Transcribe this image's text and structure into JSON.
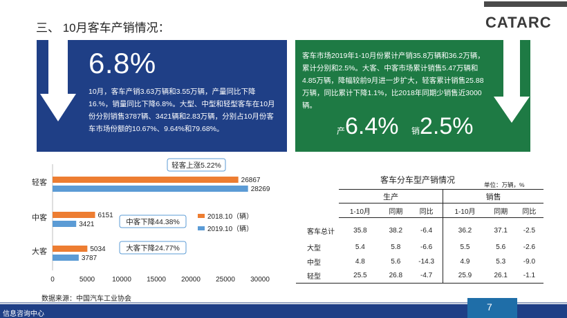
{
  "slide": {
    "heading": "三、 10月客车产销情况：",
    "logo": "CATARC",
    "footer_text": "信息咨询中心",
    "page_number": "7",
    "source": "数据来源：中国汽车工业协会"
  },
  "blue_panel": {
    "big_value": "6.8%",
    "text": "10月，客车产销3.63万辆和3.55万辆，产量同比下降16.%，销量同比下降6.8%。大型、中型和轻型客车在10月份分别销售3787辆、3421辆和2.83万辆，分别占10月份客车市场份额的10.67%、9.64%和79.68%。"
  },
  "green_panel": {
    "text": "客车市场2019年1-10月份累计产销35.8万辆和36.2万辆，累计分别和2.5%。大客、中客市场累计销售5.47万辆和4.85万辆，降幅较前9月进一步扩大，轻客累计销售25.88万辆，同比累计下降1.1%，比2018年同期少销售近3000辆。",
    "prod_label": "产",
    "prod_value": "6.4%",
    "sales_label": "销",
    "sales_value": "2.5%"
  },
  "chart_data": {
    "type": "bar",
    "orientation": "horizontal",
    "categories": [
      "轻客",
      "中客",
      "大客"
    ],
    "series": [
      {
        "name": "2018.10（辆）",
        "color": "#ed7d31",
        "values": [
          26867,
          6151,
          5034
        ]
      },
      {
        "name": "2019.10（辆）",
        "color": "#5b9bd5",
        "values": [
          28269,
          3421,
          3787
        ]
      }
    ],
    "xlim": [
      0,
      30000
    ],
    "xticks": [
      0,
      5000,
      10000,
      15000,
      20000,
      25000,
      30000
    ],
    "legend_position": "right",
    "grid": false,
    "annotations": [
      "轻客上涨5.22%",
      "中客下降44.38%",
      "大客下降24.77%"
    ]
  },
  "table": {
    "title": "客车分车型产销情况",
    "unit": "单位：万辆，%",
    "group_headers": [
      "生产",
      "销售"
    ],
    "sub_headers": [
      "1-10月",
      "同期",
      "同比",
      "1-10月",
      "同期",
      "同比"
    ],
    "rows": [
      {
        "label": "客车总计",
        "cells": [
          "35.8",
          "38.2",
          "-6.4",
          "36.2",
          "37.1",
          "-2.5"
        ]
      },
      {
        "label": "大型",
        "cells": [
          "5.4",
          "5.8",
          "-6.6",
          "5.5",
          "5.6",
          "-2.6"
        ]
      },
      {
        "label": "中型",
        "cells": [
          "4.8",
          "5.6",
          "-14.3",
          "4.9",
          "5.3",
          "-9.0"
        ]
      },
      {
        "label": "轻型",
        "cells": [
          "25.5",
          "26.8",
          "-4.7",
          "25.9",
          "26.1",
          "-1.1"
        ]
      }
    ]
  },
  "colors": {
    "blue_panel": "#1f3f86",
    "green_panel": "#1e7a44",
    "series_2018": "#ed7d31",
    "series_2019": "#5b9bd5"
  }
}
